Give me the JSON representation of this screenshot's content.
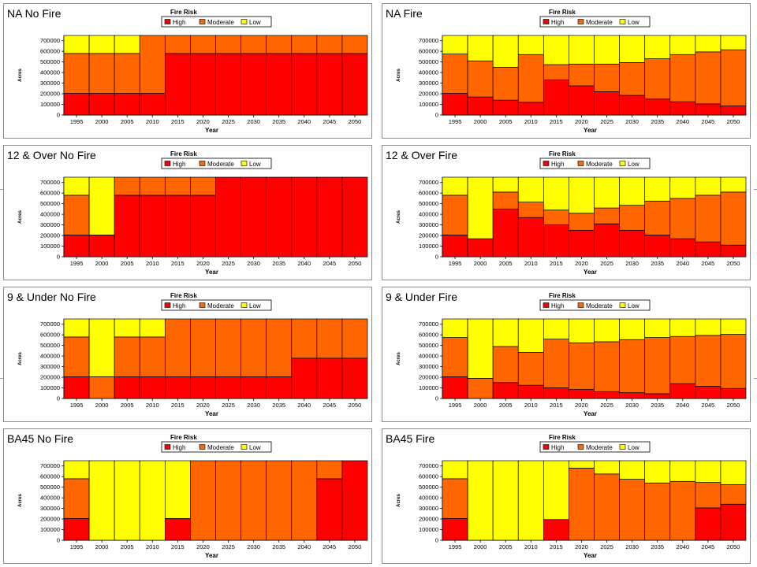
{
  "colors": {
    "High": "#ff0000",
    "Moderate": "#ff6600",
    "Low": "#ffff00"
  },
  "chart_data": [
    {
      "type": "bar",
      "stacked": true,
      "title": "NA No Fire",
      "legend_title": "Fire Risk",
      "legend_position": "top-center",
      "xlabel": "Year",
      "ylabel": "Acres",
      "ylim": [
        0,
        750000
      ],
      "yticks": [
        "0",
        "100000",
        "200000",
        "300000",
        "400000",
        "500000",
        "600000",
        "700000"
      ],
      "categories": [
        "1995",
        "2000",
        "2005",
        "2010",
        "2015",
        "2020",
        "2025",
        "2030",
        "2035",
        "2040",
        "2045",
        "2050"
      ],
      "series": [
        {
          "name": "High",
          "values": [
            205000,
            205000,
            205000,
            205000,
            580000,
            580000,
            580000,
            580000,
            580000,
            580000,
            580000,
            580000
          ]
        },
        {
          "name": "Moderate",
          "values": [
            375000,
            375000,
            375000,
            545000,
            170000,
            170000,
            170000,
            170000,
            170000,
            170000,
            170000,
            170000
          ]
        },
        {
          "name": "Low",
          "values": [
            170000,
            170000,
            170000,
            0,
            0,
            0,
            0,
            0,
            0,
            0,
            0,
            0
          ]
        }
      ]
    },
    {
      "type": "bar",
      "stacked": true,
      "title": "NA Fire",
      "legend_title": "Fire Risk",
      "legend_position": "top-center",
      "xlabel": "Year",
      "ylabel": "Acres",
      "ylim": [
        0,
        750000
      ],
      "yticks": [
        "0",
        "100000",
        "200000",
        "300000",
        "400000",
        "500000",
        "600000",
        "700000"
      ],
      "categories": [
        "1995",
        "2000",
        "2005",
        "2010",
        "2015",
        "2020",
        "2025",
        "2030",
        "2035",
        "2040",
        "2045",
        "2050"
      ],
      "series": [
        {
          "name": "High",
          "values": [
            205000,
            170000,
            140000,
            120000,
            330000,
            275000,
            220000,
            185000,
            150000,
            125000,
            105000,
            85000
          ]
        },
        {
          "name": "Moderate",
          "values": [
            370000,
            340000,
            310000,
            450000,
            145000,
            205000,
            260000,
            310000,
            380000,
            445000,
            490000,
            530000
          ]
        },
        {
          "name": "Low",
          "values": [
            175000,
            240000,
            300000,
            180000,
            275000,
            270000,
            270000,
            255000,
            220000,
            180000,
            155000,
            135000
          ]
        }
      ]
    },
    {
      "type": "bar",
      "stacked": true,
      "title": "12 & Over No Fire",
      "legend_title": "Fire Risk",
      "legend_position": "top-center",
      "xlabel": "Year",
      "ylabel": "Acres",
      "ylim": [
        0,
        750000
      ],
      "yticks": [
        "0",
        "100000",
        "200000",
        "300000",
        "400000",
        "500000",
        "600000",
        "700000"
      ],
      "categories": [
        "1995",
        "2000",
        "2005",
        "2010",
        "2015",
        "2020",
        "2025",
        "2030",
        "2035",
        "2040",
        "2045",
        "2050"
      ],
      "series": [
        {
          "name": "High",
          "values": [
            205000,
            205000,
            580000,
            580000,
            580000,
            580000,
            750000,
            750000,
            750000,
            750000,
            750000,
            750000
          ]
        },
        {
          "name": "Moderate",
          "values": [
            375000,
            0,
            170000,
            170000,
            170000,
            170000,
            0,
            0,
            0,
            0,
            0,
            0
          ]
        },
        {
          "name": "Low",
          "values": [
            170000,
            545000,
            0,
            0,
            0,
            0,
            0,
            0,
            0,
            0,
            0,
            0
          ]
        }
      ]
    },
    {
      "type": "bar",
      "stacked": true,
      "title": "12 & Over Fire",
      "legend_title": "Fire Risk",
      "legend_position": "top-center",
      "xlabel": "Year",
      "ylabel": "Acres",
      "ylim": [
        0,
        750000
      ],
      "yticks": [
        "0",
        "100000",
        "200000",
        "300000",
        "400000",
        "500000",
        "600000",
        "700000"
      ],
      "categories": [
        "1995",
        "2000",
        "2005",
        "2010",
        "2015",
        "2020",
        "2025",
        "2030",
        "2035",
        "2040",
        "2045",
        "2050"
      ],
      "series": [
        {
          "name": "High",
          "values": [
            205000,
            170000,
            450000,
            370000,
            300000,
            250000,
            310000,
            250000,
            205000,
            170000,
            140000,
            110000
          ]
        },
        {
          "name": "Moderate",
          "values": [
            375000,
            0,
            160000,
            145000,
            140000,
            160000,
            150000,
            235000,
            320000,
            380000,
            440000,
            500000
          ]
        },
        {
          "name": "Low",
          "values": [
            170000,
            580000,
            140000,
            235000,
            310000,
            340000,
            290000,
            265000,
            225000,
            200000,
            170000,
            140000
          ]
        }
      ]
    },
    {
      "type": "bar",
      "stacked": true,
      "title": "9 & Under No Fire",
      "legend_title": "Fire Risk",
      "legend_position": "top-center",
      "xlabel": "Year",
      "ylabel": "Acres",
      "ylim": [
        0,
        750000
      ],
      "yticks": [
        "0",
        "100000",
        "200000",
        "300000",
        "400000",
        "500000",
        "600000",
        "700000"
      ],
      "categories": [
        "1995",
        "2000",
        "2005",
        "2010",
        "2015",
        "2020",
        "2025",
        "2030",
        "2035",
        "2040",
        "2045",
        "2050"
      ],
      "series": [
        {
          "name": "High",
          "values": [
            205000,
            0,
            205000,
            205000,
            205000,
            205000,
            205000,
            205000,
            205000,
            380000,
            380000,
            380000
          ]
        },
        {
          "name": "Moderate",
          "values": [
            375000,
            205000,
            375000,
            375000,
            545000,
            545000,
            545000,
            545000,
            545000,
            370000,
            370000,
            370000
          ]
        },
        {
          "name": "Low",
          "values": [
            170000,
            545000,
            170000,
            170000,
            0,
            0,
            0,
            0,
            0,
            0,
            0,
            0
          ]
        }
      ]
    },
    {
      "type": "bar",
      "stacked": true,
      "title": "9 & Under Fire",
      "legend_title": "Fire Risk",
      "legend_position": "top-center",
      "xlabel": "Year",
      "ylabel": "Acres",
      "ylim": [
        0,
        750000
      ],
      "yticks": [
        "0",
        "100000",
        "200000",
        "300000",
        "400000",
        "500000",
        "600000",
        "700000"
      ],
      "categories": [
        "1995",
        "2000",
        "2005",
        "2010",
        "2015",
        "2020",
        "2025",
        "2030",
        "2035",
        "2040",
        "2045",
        "2050"
      ],
      "series": [
        {
          "name": "High",
          "values": [
            205000,
            0,
            150000,
            125000,
            100000,
            85000,
            65000,
            55000,
            45000,
            140000,
            115000,
            95000
          ]
        },
        {
          "name": "Moderate",
          "values": [
            370000,
            190000,
            340000,
            310000,
            460000,
            440000,
            470000,
            500000,
            530000,
            445000,
            480000,
            510000
          ]
        },
        {
          "name": "Low",
          "values": [
            175000,
            560000,
            260000,
            315000,
            190000,
            225000,
            215000,
            195000,
            175000,
            165000,
            155000,
            145000
          ]
        }
      ]
    },
    {
      "type": "bar",
      "stacked": true,
      "title": "BA45 No Fire",
      "legend_title": "Fire Risk",
      "legend_position": "top-center",
      "xlabel": "Year",
      "ylabel": "Acres",
      "ylim": [
        0,
        750000
      ],
      "yticks": [
        "0",
        "100000",
        "200000",
        "300000",
        "400000",
        "500000",
        "600000",
        "700000"
      ],
      "categories": [
        "1995",
        "2000",
        "2005",
        "2010",
        "2015",
        "2020",
        "2025",
        "2030",
        "2035",
        "2040",
        "2045",
        "2050"
      ],
      "series": [
        {
          "name": "High",
          "values": [
            205000,
            0,
            0,
            0,
            205000,
            0,
            0,
            0,
            0,
            0,
            580000,
            750000
          ]
        },
        {
          "name": "Moderate",
          "values": [
            375000,
            0,
            0,
            0,
            0,
            750000,
            750000,
            750000,
            750000,
            750000,
            170000,
            0
          ]
        },
        {
          "name": "Low",
          "values": [
            170000,
            750000,
            750000,
            750000,
            545000,
            0,
            0,
            0,
            0,
            0,
            0,
            0
          ]
        }
      ]
    },
    {
      "type": "bar",
      "stacked": true,
      "title": "BA45 Fire",
      "legend_title": "Fire Risk",
      "legend_position": "top-center",
      "xlabel": "Year",
      "ylabel": "Acres",
      "ylim": [
        0,
        750000
      ],
      "yticks": [
        "0",
        "100000",
        "200000",
        "300000",
        "400000",
        "500000",
        "600000",
        "700000"
      ],
      "categories": [
        "1995",
        "2000",
        "2005",
        "2010",
        "2015",
        "2020",
        "2025",
        "2030",
        "2035",
        "2040",
        "2045",
        "2050"
      ],
      "series": [
        {
          "name": "High",
          "values": [
            205000,
            0,
            0,
            0,
            195000,
            0,
            0,
            0,
            0,
            0,
            305000,
            340000
          ]
        },
        {
          "name": "Moderate",
          "values": [
            375000,
            0,
            0,
            0,
            0,
            680000,
            625000,
            575000,
            540000,
            555000,
            240000,
            185000
          ]
        },
        {
          "name": "Low",
          "values": [
            170000,
            750000,
            750000,
            750000,
            555000,
            70000,
            125000,
            175000,
            210000,
            195000,
            205000,
            225000
          ]
        }
      ]
    }
  ]
}
